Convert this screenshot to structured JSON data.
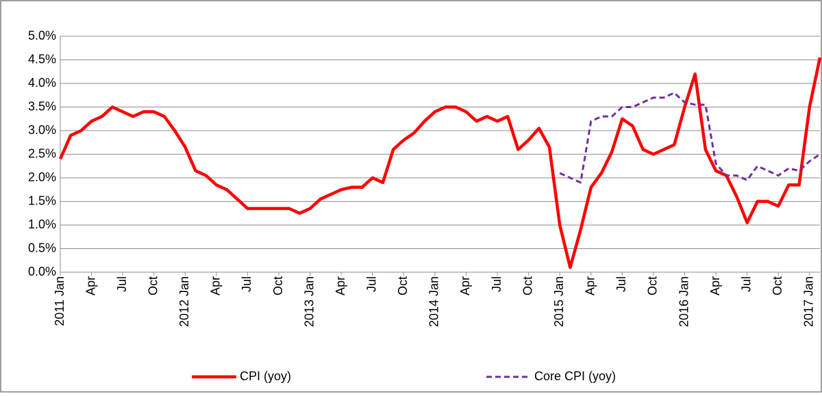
{
  "chart_data": {
    "type": "line",
    "categories": [
      "2011 Jan",
      null,
      null,
      "Apr",
      null,
      null,
      "Jul",
      null,
      null,
      "Oct",
      null,
      null,
      "2012 Jan",
      null,
      null,
      "Apr",
      null,
      null,
      "Jul",
      null,
      null,
      "Oct",
      null,
      null,
      "2013 Jan",
      null,
      null,
      "Apr",
      null,
      null,
      "Jul",
      null,
      null,
      "Oct",
      null,
      null,
      "2014 Jan",
      null,
      null,
      "Apr",
      null,
      null,
      "Jul",
      null,
      null,
      "Oct",
      null,
      null,
      "2015 Jan",
      null,
      null,
      "Apr",
      null,
      null,
      "Jul",
      null,
      null,
      "Oct",
      null,
      null,
      "2016 Jan",
      null,
      null,
      "Apr",
      null,
      null,
      "Jul",
      null,
      null,
      "Oct",
      null,
      null,
      "2017 Jan",
      null
    ],
    "series": [
      {
        "name": "CPI (yoy)",
        "color": "#ff0000",
        "dash": false,
        "values": [
          2.4,
          2.9,
          3.0,
          3.2,
          3.3,
          3.5,
          3.4,
          3.3,
          3.4,
          3.4,
          3.3,
          3.0,
          2.65,
          2.15,
          2.05,
          1.85,
          1.75,
          1.55,
          1.35,
          1.35,
          1.35,
          1.35,
          1.35,
          1.25,
          1.35,
          1.55,
          1.65,
          1.75,
          1.8,
          1.8,
          2.0,
          1.9,
          2.6,
          2.8,
          2.95,
          3.2,
          3.4,
          3.5,
          3.5,
          3.4,
          3.2,
          3.3,
          3.2,
          3.3,
          2.6,
          2.8,
          3.05,
          2.65,
          1.0,
          0.1,
          0.9,
          1.8,
          2.1,
          2.55,
          3.25,
          3.1,
          2.6,
          2.5,
          2.6,
          2.7,
          3.5,
          4.2,
          2.6,
          2.15,
          2.05,
          1.6,
          1.05,
          1.5,
          1.5,
          1.4,
          1.85,
          1.85,
          3.5,
          4.55
        ]
      },
      {
        "name": "Core CPI (yoy)",
        "color": "#7030a0",
        "dash": true,
        "values": [
          null,
          null,
          null,
          null,
          null,
          null,
          null,
          null,
          null,
          null,
          null,
          null,
          null,
          null,
          null,
          null,
          null,
          null,
          null,
          null,
          null,
          null,
          null,
          null,
          null,
          null,
          null,
          null,
          null,
          null,
          null,
          null,
          null,
          null,
          null,
          null,
          null,
          null,
          null,
          null,
          null,
          null,
          null,
          null,
          null,
          null,
          null,
          null,
          2.1,
          2.0,
          1.9,
          3.2,
          3.3,
          3.3,
          3.5,
          3.5,
          3.6,
          3.7,
          3.7,
          3.8,
          3.6,
          3.55,
          3.55,
          2.3,
          2.05,
          2.05,
          1.95,
          2.25,
          2.15,
          2.05,
          2.2,
          2.15,
          2.35,
          2.5
        ]
      }
    ],
    "ylim": [
      0,
      5
    ],
    "yticks": [
      {
        "value": 0,
        "label": "0.0%"
      },
      {
        "value": 0.5,
        "label": "0.5%"
      },
      {
        "value": 1,
        "label": "1.0%"
      },
      {
        "value": 1.5,
        "label": "1.5%"
      },
      {
        "value": 2,
        "label": "2.0%"
      },
      {
        "value": 2.5,
        "label": "2.5%"
      },
      {
        "value": 3,
        "label": "3.0%"
      },
      {
        "value": 3.5,
        "label": "3.5%"
      },
      {
        "value": 4,
        "label": "4.0%"
      },
      {
        "value": 4.5,
        "label": "4.5%"
      },
      {
        "value": 5,
        "label": "5.0%"
      }
    ],
    "grid": true,
    "legend": "bottom"
  }
}
